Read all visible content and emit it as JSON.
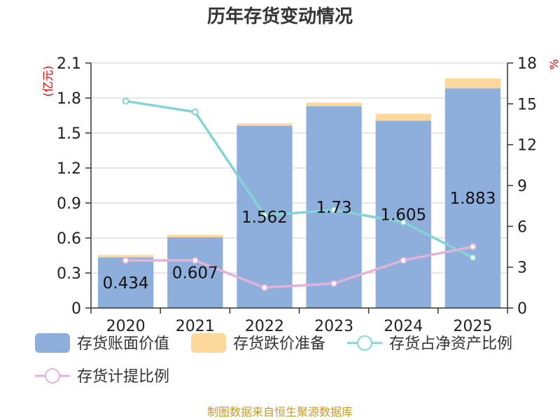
{
  "chart_data": {
    "type": "bar",
    "title": "历年存货变动情况",
    "categories": [
      "2020",
      "2021",
      "2022",
      "2023",
      "2024",
      "2025"
    ],
    "y_left": {
      "unit": "(亿元)",
      "ylim": [
        0,
        2.1
      ],
      "ticks": [
        "0",
        "0.3",
        "0.6",
        "0.9",
        "1.2",
        "1.5",
        "1.8",
        "2.1"
      ]
    },
    "y_right": {
      "unit": "%",
      "ylim": [
        0,
        18
      ],
      "ticks": [
        "0",
        "3",
        "6",
        "9",
        "12",
        "15",
        "18"
      ]
    },
    "series": [
      {
        "name": "存货账面价值",
        "kind": "bar",
        "axis": "left",
        "color": "#8eaedb",
        "values": [
          0.434,
          0.607,
          1.562,
          1.73,
          1.605,
          1.883
        ],
        "labels": [
          "0.434",
          "0.607",
          "1.562",
          "1.73",
          "1.605",
          "1.883"
        ]
      },
      {
        "name": "存货跌价准备",
        "kind": "bar-stacked",
        "axis": "left",
        "color": "#fdd89c",
        "values": [
          0.02,
          0.02,
          0.02,
          0.03,
          0.06,
          0.085
        ]
      },
      {
        "name": "存货占净资产比例",
        "kind": "line",
        "axis": "right",
        "color": "#86d3d5",
        "values": [
          15.2,
          14.4,
          6.8,
          7.2,
          6.3,
          3.7
        ]
      },
      {
        "name": "存货计提比例",
        "kind": "line",
        "axis": "right",
        "color": "#e2b3d8",
        "values": [
          3.5,
          3.5,
          1.5,
          1.8,
          3.5,
          4.5
        ]
      }
    ],
    "grid": true,
    "legend": "bottom"
  },
  "footer": {
    "source": "制图数据来自恒生聚源数据库"
  }
}
